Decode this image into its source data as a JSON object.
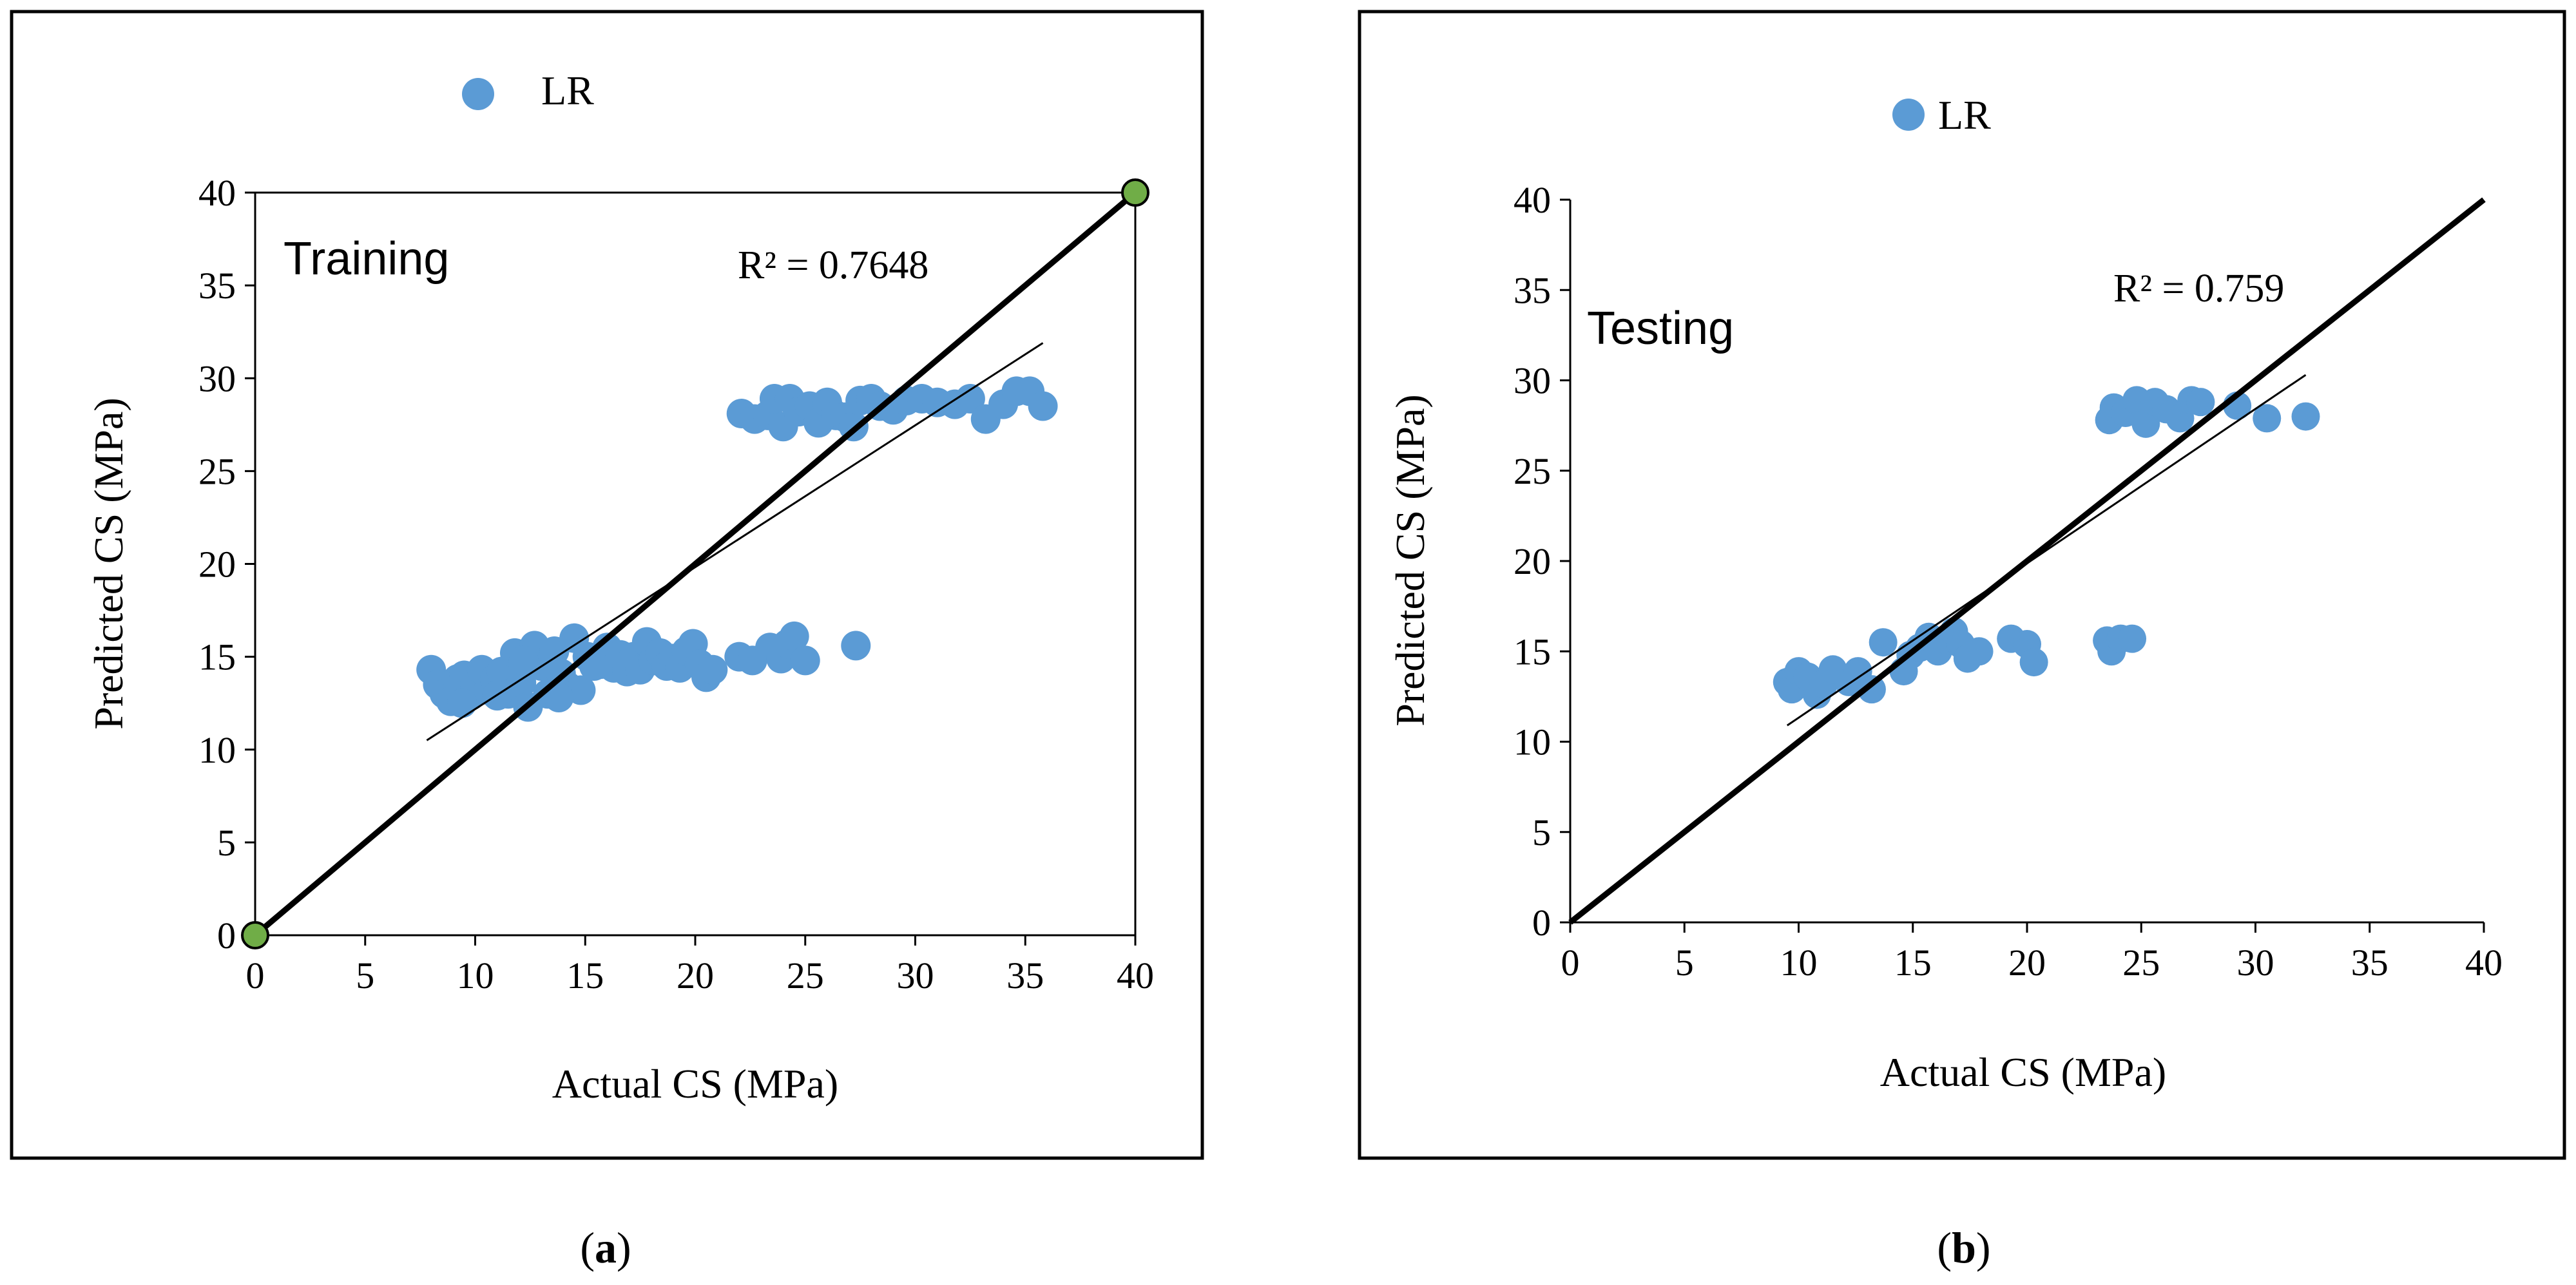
{
  "chart_data": [
    {
      "type": "scatter",
      "panel_label": "Training",
      "caption": {
        "open": "(",
        "letter": "a",
        "close": ")"
      },
      "legend": "LR",
      "xlabel": "Actual CS (MPa)",
      "ylabel": "Predicted CS (MPa)",
      "xlim": [
        0,
        40
      ],
      "ylim": [
        0,
        40
      ],
      "xticks": [
        "0",
        "5",
        "10",
        "15",
        "20",
        "25",
        "30",
        "35",
        "40"
      ],
      "yticks": [
        "0",
        "5",
        "10",
        "15",
        "20",
        "25",
        "30",
        "35",
        "40"
      ],
      "r2_label": "R² = 0.7648",
      "colors": {
        "points": "#5B9BD5",
        "end_points": "#70AD47",
        "line": "#000000"
      },
      "ideal_line": {
        "from": [
          0,
          0
        ],
        "to": [
          40,
          40
        ]
      },
      "end_points": [
        [
          0,
          0
        ],
        [
          40,
          40
        ]
      ],
      "trend_line": {
        "from": [
          7.8,
          10.5
        ],
        "to": [
          35.8,
          31.9
        ]
      },
      "points": [
        [
          8.0,
          14.3
        ],
        [
          8.3,
          13.5
        ],
        [
          8.6,
          13.0
        ],
        [
          8.9,
          12.6
        ],
        [
          9.2,
          13.8
        ],
        [
          9.5,
          14.0
        ],
        [
          9.8,
          12.9
        ],
        [
          10.0,
          13.5
        ],
        [
          10.3,
          14.3
        ],
        [
          10.6,
          13.2
        ],
        [
          10.9,
          13.8
        ],
        [
          11.2,
          14.2
        ],
        [
          11.5,
          13.0
        ],
        [
          11.8,
          15.2
        ],
        [
          12.1,
          13.6
        ],
        [
          12.4,
          12.3
        ],
        [
          12.7,
          15.6
        ],
        [
          13.0,
          14.5
        ],
        [
          13.3,
          13.0
        ],
        [
          13.6,
          15.3
        ],
        [
          13.9,
          14.1
        ],
        [
          14.2,
          13.4
        ],
        [
          14.5,
          16.0
        ],
        [
          14.8,
          13.2
        ],
        [
          15.1,
          15.0
        ],
        [
          15.4,
          14.5
        ],
        [
          15.7,
          14.6
        ],
        [
          16.0,
          15.5
        ],
        [
          16.3,
          14.4
        ],
        [
          16.6,
          15.1
        ],
        [
          16.9,
          14.2
        ],
        [
          17.2,
          15.0
        ],
        [
          17.5,
          14.3
        ],
        [
          17.8,
          15.8
        ],
        [
          18.1,
          14.8
        ],
        [
          18.4,
          15.2
        ],
        [
          18.7,
          14.5
        ],
        [
          19.0,
          14.9
        ],
        [
          19.3,
          14.4
        ],
        [
          19.6,
          15.3
        ],
        [
          19.9,
          15.7
        ],
        [
          20.2,
          14.6
        ],
        [
          20.5,
          13.9
        ],
        [
          20.8,
          14.3
        ],
        [
          12.2,
          14.8
        ],
        [
          9.4,
          12.5
        ],
        [
          11.0,
          12.9
        ],
        [
          13.8,
          12.8
        ],
        [
          22.0,
          15.0
        ],
        [
          22.6,
          14.8
        ],
        [
          23.4,
          15.5
        ],
        [
          23.9,
          14.9
        ],
        [
          24.2,
          15.7
        ],
        [
          24.5,
          16.1
        ],
        [
          25.0,
          14.8
        ],
        [
          27.3,
          15.6
        ],
        [
          22.1,
          28.1
        ],
        [
          22.7,
          27.8
        ],
        [
          23.3,
          28.0
        ],
        [
          23.6,
          28.9
        ],
        [
          24.0,
          27.4
        ],
        [
          24.3,
          28.9
        ],
        [
          24.7,
          28.2
        ],
        [
          25.2,
          28.5
        ],
        [
          25.6,
          27.6
        ],
        [
          26.0,
          28.7
        ],
        [
          26.4,
          28.0
        ],
        [
          26.8,
          27.9
        ],
        [
          27.2,
          27.4
        ],
        [
          27.5,
          28.8
        ],
        [
          28.0,
          28.9
        ],
        [
          28.4,
          28.5
        ],
        [
          29.0,
          28.3
        ],
        [
          29.6,
          28.8
        ],
        [
          30.3,
          28.9
        ],
        [
          31.0,
          28.7
        ],
        [
          31.8,
          28.6
        ],
        [
          32.5,
          28.9
        ],
        [
          33.2,
          27.8
        ],
        [
          34.0,
          28.6
        ],
        [
          34.6,
          29.3
        ],
        [
          35.2,
          29.3
        ],
        [
          35.8,
          28.5
        ]
      ]
    },
    {
      "type": "scatter",
      "panel_label": "Testing",
      "caption": {
        "open": "(",
        "letter": "b",
        "close": ")"
      },
      "legend": "LR",
      "xlabel": "Actual CS (MPa)",
      "ylabel": "Predicted CS (MPa)",
      "xlim": [
        0,
        40
      ],
      "ylim": [
        0,
        40
      ],
      "xticks": [
        "0",
        "5",
        "10",
        "15",
        "20",
        "25",
        "30",
        "35",
        "40"
      ],
      "yticks": [
        "0",
        "5",
        "10",
        "15",
        "20",
        "25",
        "30",
        "35",
        "40"
      ],
      "r2_label": "R² = 0.759",
      "colors": {
        "points": "#5B9BD5",
        "line": "#000000"
      },
      "ideal_line": {
        "from": [
          0,
          0
        ],
        "to": [
          40,
          40
        ]
      },
      "end_points": [],
      "trend_line": {
        "from": [
          9.5,
          10.9
        ],
        "to": [
          32.2,
          30.3
        ]
      },
      "points": [
        [
          9.5,
          13.3
        ],
        [
          9.7,
          12.9
        ],
        [
          10.0,
          13.9
        ],
        [
          10.4,
          13.6
        ],
        [
          10.8,
          12.6
        ],
        [
          11.1,
          13.2
        ],
        [
          11.5,
          14.0
        ],
        [
          12.2,
          13.3
        ],
        [
          12.6,
          13.9
        ],
        [
          13.2,
          12.9
        ],
        [
          13.7,
          15.5
        ],
        [
          14.6,
          13.9
        ],
        [
          14.9,
          14.8
        ],
        [
          15.3,
          15.2
        ],
        [
          15.7,
          15.8
        ],
        [
          16.1,
          15.0
        ],
        [
          16.5,
          15.6
        ],
        [
          16.8,
          16.1
        ],
        [
          17.1,
          15.4
        ],
        [
          17.4,
          14.6
        ],
        [
          17.9,
          15.0
        ],
        [
          19.3,
          15.7
        ],
        [
          20.0,
          15.4
        ],
        [
          20.3,
          14.4
        ],
        [
          23.5,
          15.6
        ],
        [
          23.7,
          15.0
        ],
        [
          24.1,
          15.7
        ],
        [
          24.6,
          15.7
        ],
        [
          23.6,
          27.8
        ],
        [
          23.8,
          28.5
        ],
        [
          24.3,
          28.2
        ],
        [
          24.8,
          28.9
        ],
        [
          25.2,
          27.6
        ],
        [
          25.6,
          28.8
        ],
        [
          26.1,
          28.4
        ],
        [
          26.7,
          27.9
        ],
        [
          27.2,
          28.9
        ],
        [
          27.6,
          28.8
        ],
        [
          29.2,
          28.6
        ],
        [
          30.5,
          27.9
        ],
        [
          32.2,
          28.0
        ]
      ]
    }
  ]
}
